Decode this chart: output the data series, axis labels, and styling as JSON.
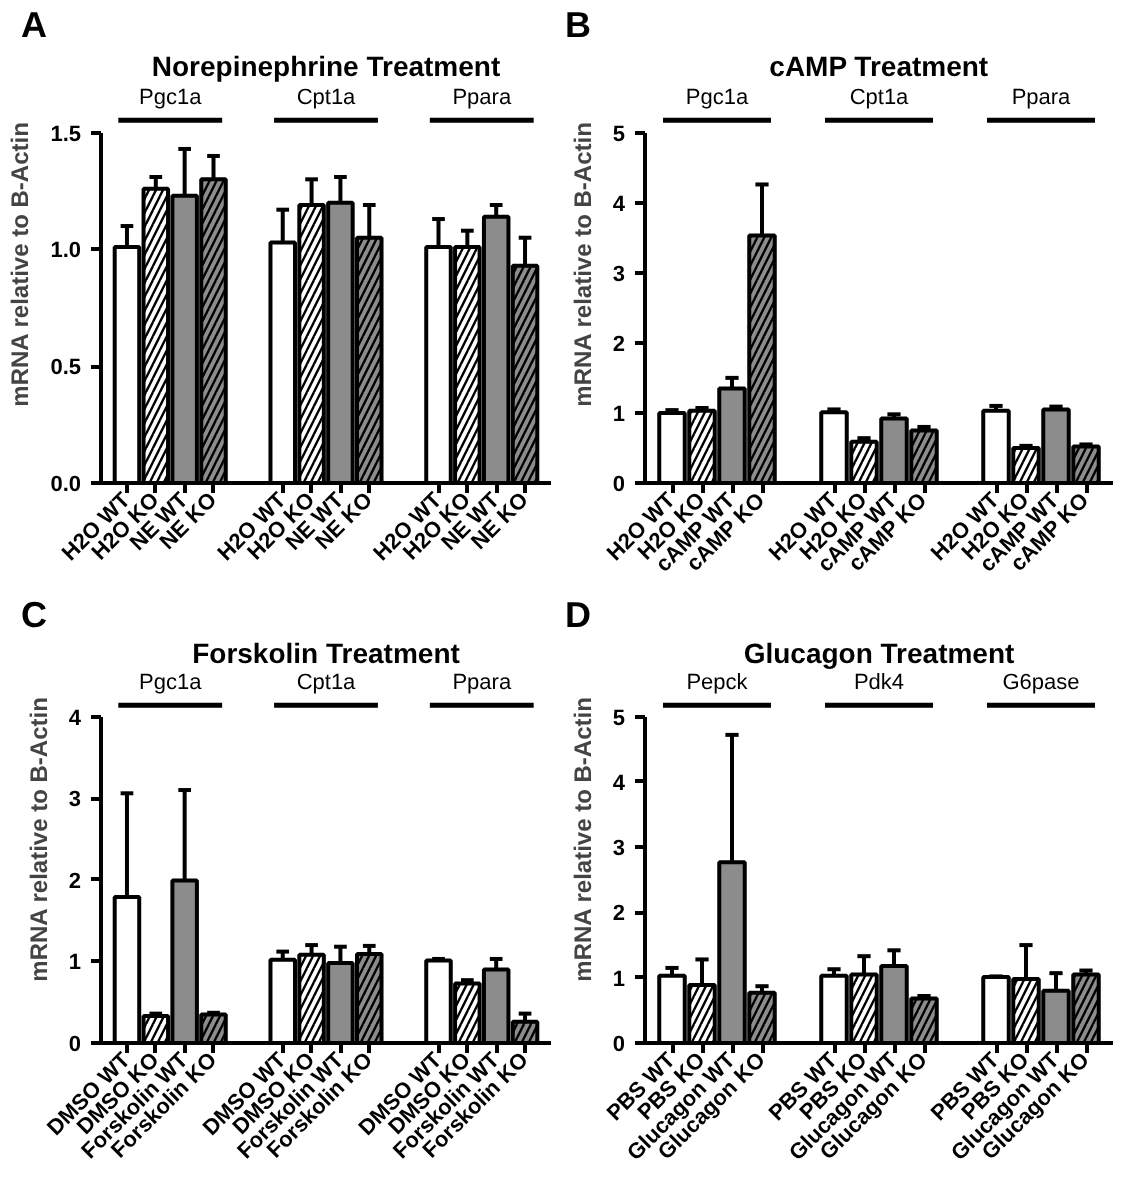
{
  "chart_data": [
    {
      "type": "bar",
      "title": "Norepinephrine Treatment",
      "ylabel": "mRNA relative to B-Actin",
      "annotations": [
        "A",
        "Pgc1a",
        "Cpt1a",
        "Ppara"
      ],
      "categories": [
        "H2O WT",
        "H2O KO",
        "NE WT",
        "NE KO",
        "H2O WT",
        "H2O KO",
        "NE WT",
        "NE KO",
        "H2O WT",
        "H2O KO",
        "NE WT",
        "NE KO"
      ],
      "values": [
        1.01,
        1.26,
        1.23,
        1.3,
        1.03,
        1.19,
        1.2,
        1.05,
        1.01,
        1.01,
        1.14,
        0.93
      ],
      "errors": [
        [
          1.01,
          1.1
        ],
        [
          1.26,
          1.31
        ],
        [
          1.23,
          1.43
        ],
        [
          1.3,
          1.4
        ],
        [
          1.03,
          1.17
        ],
        [
          1.19,
          1.3
        ],
        [
          1.2,
          1.31
        ],
        [
          1.05,
          1.19
        ],
        [
          1.01,
          1.13
        ],
        [
          1.01,
          1.08
        ],
        [
          1.14,
          1.19
        ],
        [
          0.93,
          1.05
        ]
      ],
      "colors": [
        "#ffffff",
        "#ffffff",
        "#8c8c8c",
        "#8c8c8c",
        "#ffffff",
        "#ffffff",
        "#8c8c8c",
        "#8c8c8c",
        "#ffffff",
        "#ffffff",
        "#8c8c8c",
        "#8c8c8c"
      ],
      "ylim": [
        0,
        1.5
      ],
      "yticks": [
        {
          "value": 0,
          "label": "0.0"
        },
        0.5,
        {
          "value": 1,
          "label": "1.0"
        },
        1.5
      ],
      "grid": false
    },
    {
      "type": "bar",
      "title": "cAMP Treatment",
      "ylabel": "mRNA relative to B-Actin",
      "annotations": [
        "B",
        "Pgc1a",
        "Cpt1a",
        "Ppara"
      ],
      "categories": [
        "H2O WT",
        "H2O KO",
        "cAMP WT",
        "cAMP KO",
        "H2O WT",
        "H2O KO",
        "cAMP WT",
        "cAMP KO",
        "H2O WT",
        "H2O KO",
        "cAMP WT",
        "cAMP KO"
      ],
      "values": [
        1.0,
        1.03,
        1.35,
        3.53,
        1.01,
        0.59,
        0.92,
        0.75,
        1.03,
        0.5,
        1.05,
        0.52
      ],
      "errors": [
        [
          1.0,
          1.04
        ],
        [
          1.03,
          1.07
        ],
        [
          1.35,
          1.5
        ],
        [
          3.53,
          4.26
        ],
        [
          1.01,
          1.05
        ],
        [
          0.59,
          0.64
        ],
        [
          0.92,
          0.98
        ],
        [
          0.75,
          0.8
        ],
        [
          1.03,
          1.1
        ],
        [
          0.5,
          0.53
        ],
        [
          1.05,
          1.09
        ],
        [
          0.52,
          0.55
        ]
      ],
      "colors": [
        "#ffffff",
        "#ffffff",
        "#8c8c8c",
        "#8c8c8c",
        "#ffffff",
        "#ffffff",
        "#8c8c8c",
        "#8c8c8c",
        "#ffffff",
        "#ffffff",
        "#8c8c8c",
        "#8c8c8c"
      ],
      "ylim": [
        0,
        5
      ],
      "yticks": [
        0,
        1,
        2,
        3,
        4,
        5
      ],
      "grid": false
    },
    {
      "type": "bar",
      "title": "Forskolin Treatment",
      "ylabel": "mRNA relative to B-Actin",
      "annotations": [
        "C",
        "Pgc1a",
        "Cpt1a",
        "Ppara"
      ],
      "categories": [
        "DMSO WT",
        "DMSO KO",
        "Forskolin WT",
        "Forskolin KO",
        "DMSO WT",
        "DMSO KO",
        "Forskolin WT",
        "Forskolin KO",
        "DMSO WT",
        "DMSO KO",
        "Forskolin WT",
        "Forskolin KO"
      ],
      "values": [
        1.79,
        0.33,
        1.99,
        0.35,
        1.02,
        1.08,
        0.98,
        1.09,
        1.01,
        0.73,
        0.9,
        0.26
      ],
      "errors": [
        [
          1.79,
          3.06
        ],
        [
          0.33,
          0.36
        ],
        [
          1.99,
          3.1
        ],
        [
          0.35,
          0.37
        ],
        [
          1.02,
          1.12
        ],
        [
          1.08,
          1.2
        ],
        [
          0.98,
          1.18
        ],
        [
          1.09,
          1.19
        ],
        [
          1.01,
          1.03
        ],
        [
          0.73,
          0.77
        ],
        [
          0.9,
          1.03
        ],
        [
          0.26,
          0.36
        ]
      ],
      "colors": [
        "#ffffff",
        "#ffffff",
        "#8c8c8c",
        "#8c8c8c",
        "#ffffff",
        "#ffffff",
        "#8c8c8c",
        "#8c8c8c",
        "#ffffff",
        "#ffffff",
        "#8c8c8c",
        "#8c8c8c"
      ],
      "ylim": [
        0,
        4
      ],
      "yticks": [
        0,
        1,
        2,
        3,
        4
      ],
      "grid": false
    },
    {
      "type": "bar",
      "title": "Glucagon Treatment",
      "ylabel": "mRNA relative to B-Actin",
      "annotations": [
        "D",
        "Pepck",
        "Pdk4",
        "G6pase"
      ],
      "categories": [
        "PBS WT",
        "PBS KO",
        "Glucagon WT",
        "Glucagon KO",
        "PBS WT",
        "PBS KO",
        "Glucagon WT",
        "Glucagon KO",
        "PBS WT",
        "PBS KO",
        "Glucagon WT",
        "Glucagon KO"
      ],
      "values": [
        1.03,
        0.89,
        2.77,
        0.77,
        1.03,
        1.05,
        1.18,
        0.68,
        1.01,
        0.98,
        0.8,
        1.05
      ],
      "errors": [
        [
          1.03,
          1.15
        ],
        [
          0.89,
          1.28
        ],
        [
          2.77,
          4.72
        ],
        [
          0.77,
          0.87
        ],
        [
          1.03,
          1.13
        ],
        [
          1.05,
          1.33
        ],
        [
          1.18,
          1.42
        ],
        [
          0.68,
          0.72
        ],
        [
          1.01,
          1.02
        ],
        [
          0.98,
          1.5
        ],
        [
          0.8,
          1.07
        ],
        [
          1.05,
          1.11
        ]
      ],
      "colors": [
        "#ffffff",
        "#ffffff",
        "#8c8c8c",
        "#8c8c8c",
        "#ffffff",
        "#ffffff",
        "#8c8c8c",
        "#8c8c8c",
        "#ffffff",
        "#ffffff",
        "#8c8c8c",
        "#8c8c8c"
      ],
      "ylim": [
        0,
        5
      ],
      "yticks": [
        0,
        1,
        2,
        3,
        4,
        5
      ],
      "grid": false
    }
  ]
}
